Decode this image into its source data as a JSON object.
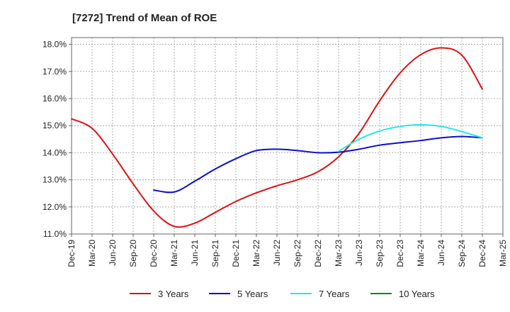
{
  "chart_data": {
    "type": "line",
    "title": "[7272]  Trend of Mean of ROE",
    "xlabel": "",
    "ylabel": "",
    "x_ticks": [
      "Dec-19",
      "Mar-20",
      "Jun-20",
      "Sep-20",
      "Dec-20",
      "Mar-21",
      "Jun-21",
      "Sep-21",
      "Dec-21",
      "Mar-22",
      "Jun-22",
      "Sep-22",
      "Dec-22",
      "Mar-23",
      "Jun-23",
      "Sep-23",
      "Dec-23",
      "Mar-24",
      "Jun-24",
      "Sep-24",
      "Dec-24",
      "Mar-25"
    ],
    "y_ticks": [
      "11.0%",
      "12.0%",
      "13.0%",
      "14.0%",
      "15.0%",
      "16.0%",
      "17.0%",
      "18.0%"
    ],
    "ylim": [
      11.0,
      18.25
    ],
    "grid": true,
    "legend_position": "bottom",
    "series": [
      {
        "name": "3 Years",
        "color": "#dd1111",
        "x": [
          0,
          1,
          2,
          3,
          4,
          5,
          6,
          7,
          8,
          9,
          10,
          11,
          12,
          13,
          14,
          15,
          16,
          17,
          18,
          19,
          20
        ],
        "values": [
          15.25,
          14.9,
          13.95,
          12.85,
          11.85,
          11.28,
          11.4,
          11.8,
          12.2,
          12.52,
          12.78,
          13.0,
          13.3,
          13.85,
          14.72,
          15.92,
          16.95,
          17.62,
          17.87,
          17.6,
          16.35
        ]
      },
      {
        "name": "5 Years",
        "color": "#0a10c8",
        "x": [
          4,
          5,
          6,
          7,
          8,
          9,
          10,
          11,
          12,
          13,
          14,
          15,
          16,
          17,
          18,
          19,
          20
        ],
        "values": [
          12.62,
          12.55,
          12.95,
          13.4,
          13.78,
          14.08,
          14.13,
          14.08,
          14.0,
          14.02,
          14.13,
          14.28,
          14.37,
          14.45,
          14.55,
          14.6,
          14.55
        ]
      },
      {
        "name": "7 Years",
        "color": "#22e8e8",
        "x": [
          13,
          14,
          15,
          16,
          17,
          18,
          19,
          20
        ],
        "values": [
          14.05,
          14.5,
          14.8,
          14.97,
          15.03,
          14.97,
          14.78,
          14.55
        ]
      },
      {
        "name": "10 Years",
        "color": "#118811",
        "x": [],
        "values": []
      }
    ]
  }
}
